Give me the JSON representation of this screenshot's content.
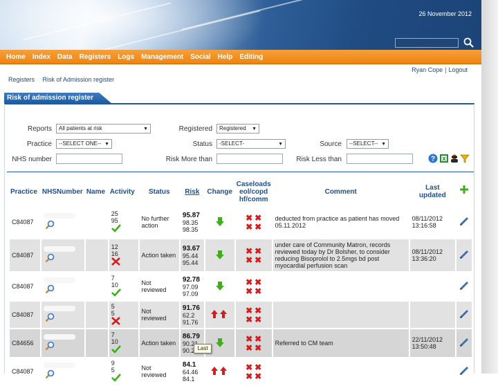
{
  "header": {
    "date": "26 November 2012",
    "search_value": ""
  },
  "nav": [
    "Home",
    "Index",
    "Data",
    "Registers",
    "Logs",
    "Management",
    "Social",
    "Help",
    "Editing"
  ],
  "user": {
    "name": "Ryan Cope",
    "separator": "|",
    "logout": "Logout"
  },
  "breadcrumb": [
    "Registers",
    "Risk of Admission register"
  ],
  "panel": {
    "title": "Risk of admission register"
  },
  "filters": {
    "reports_label": "Reports",
    "reports_value": "All patients at risk",
    "registered_label": "Registered",
    "registered_value": "Registered",
    "practice_label": "Practice",
    "practice_value": "--SELECT ONE--",
    "status_label": "Status",
    "status_value": "-SELECT-",
    "source_label": "Source",
    "source_value": "--SELECT--",
    "nhs_label": "NHS number",
    "nhs_value": "",
    "risk_more_label": "Risk More than",
    "risk_more_value": "",
    "risk_less_label": "Risk Less than",
    "risk_less_value": ""
  },
  "table": {
    "headers": {
      "practice": "Practice",
      "nhs": "NHSNumber",
      "name": "Name",
      "activity": "Activity",
      "status": "Status",
      "risk": "Risk",
      "change": "Change",
      "caseloads_1": "Caseloads",
      "caseloads_2": "eol/copd",
      "caseloads_3": "hf/comm",
      "comment": "Comment",
      "last_updated_1": "Last",
      "last_updated_2": "updated"
    },
    "rows": [
      {
        "practice": "C84087",
        "act1": "25",
        "act2": "95",
        "act_icon": "check",
        "status": "No further action",
        "risk1": "95.87",
        "risk2": "98.35",
        "risk3": "98.35",
        "change": [
          "down"
        ],
        "comment": "deducted from practice as patient has moved 05.11.2012",
        "updated_date": "08/11/2012",
        "updated_time": "13:16:58"
      },
      {
        "practice": "C84087",
        "act1": "12",
        "act2": "16",
        "act_icon": "cross",
        "status": "Action taken",
        "risk1": "93.67",
        "risk2": "95.44",
        "risk3": "95.44",
        "change": [
          "down"
        ],
        "comment": "under care of Community Matron, records reviewed today by Dr Bolsher, to consider reducing Bisoprolol to 2.5mgs bd post myocardial perfusion scan",
        "updated_date": "08/11/2012",
        "updated_time": "13:36:20"
      },
      {
        "practice": "C84087",
        "act1": "7",
        "act2": "10",
        "act_icon": "check",
        "status": "Not reviewed",
        "risk1": "92.78",
        "risk2": "97.09",
        "risk3": "97.09",
        "change": [
          "down"
        ],
        "comment": "",
        "updated_date": "",
        "updated_time": ""
      },
      {
        "practice": "C84087",
        "act1": "5",
        "act2": "5",
        "act_icon": "cross",
        "status": "Not reviewed",
        "risk1": "91.76",
        "risk2": "62.2",
        "risk3": "91.76",
        "change": [
          "up",
          "up"
        ],
        "comment": "",
        "updated_date": "",
        "updated_time": ""
      },
      {
        "practice": "C84656",
        "act1": "7",
        "act2": "10",
        "act_icon": "check",
        "status": "Action taken",
        "risk1": "86.79",
        "risk2": "90.21",
        "risk3": "90.2",
        "change": [
          "down"
        ],
        "comment": "Referred to CM team",
        "updated_date": "22/11/2012",
        "updated_time": "13:50:48"
      },
      {
        "practice": "C84087",
        "act1": "9",
        "act2": "5",
        "act_icon": "check",
        "status": "Not reviewed",
        "risk1": "84.1",
        "risk2": "64.46",
        "risk3": "84.1",
        "change": [
          "up",
          "up"
        ],
        "comment": "",
        "updated_date": "",
        "updated_time": ""
      }
    ]
  },
  "tooltip": "Last",
  "colors": {
    "nav_orange": "#f0901c",
    "header_blue": "#1f4b82",
    "link_blue": "#1d4f8e",
    "cross_red": "#d21e1e",
    "check_green": "#3fae1c"
  }
}
